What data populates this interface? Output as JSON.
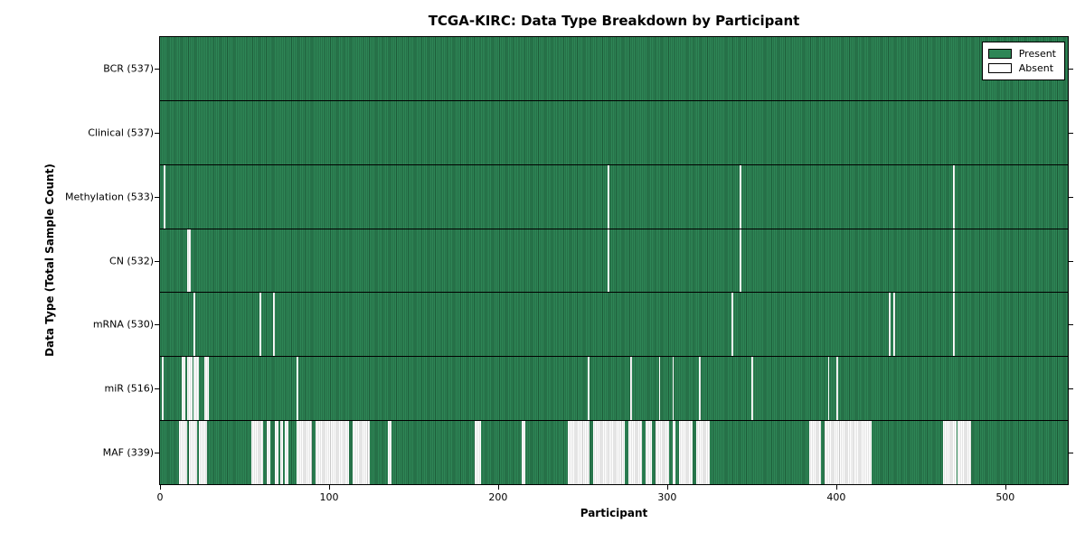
{
  "chart_data": {
    "type": "heatmap",
    "title": "TCGA-KIRC: Data Type Breakdown by Participant",
    "xlabel": "Participant",
    "ylabel": "Data Type (Total Sample Count)",
    "x_ticks": [
      0,
      100,
      200,
      300,
      400,
      500
    ],
    "x_range": [
      0,
      537
    ],
    "n_participants": 537,
    "grid": false,
    "legend_position": "upper right",
    "legend": [
      {
        "label": "Present",
        "color": "#2e8656"
      },
      {
        "label": "Absent",
        "color": "#ffffff"
      }
    ],
    "colors": {
      "present": "#2e8656",
      "present_edge": "#1d5c39",
      "absent": "#ffffff",
      "absent_edge": "#c9c9c9",
      "axis": "#000000",
      "background": "#ffffff"
    },
    "rows": [
      {
        "name": "BCR",
        "label": "BCR (537)",
        "total": 537,
        "absent_ranges": []
      },
      {
        "name": "Clinical",
        "label": "Clinical (537)",
        "total": 537,
        "absent_ranges": []
      },
      {
        "name": "Methylation",
        "label": "Methylation (533)",
        "total": 533,
        "absent_ranges": [
          [
            2,
            2
          ],
          [
            265,
            265
          ],
          [
            343,
            343
          ],
          [
            469,
            469
          ]
        ]
      },
      {
        "name": "CN",
        "label": "CN (532)",
        "total": 532,
        "absent_ranges": [
          [
            16,
            17
          ],
          [
            265,
            265
          ],
          [
            343,
            343
          ],
          [
            469,
            469
          ]
        ]
      },
      {
        "name": "mRNA",
        "label": "mRNA (530)",
        "total": 530,
        "absent_ranges": [
          [
            20,
            20
          ],
          [
            59,
            59
          ],
          [
            67,
            67
          ],
          [
            338,
            338
          ],
          [
            431,
            431
          ],
          [
            434,
            434
          ],
          [
            469,
            469
          ]
        ]
      },
      {
        "name": "miR",
        "label": "miR (516)",
        "total": 516,
        "absent_ranges": [
          [
            1,
            1
          ],
          [
            13,
            14
          ],
          [
            16,
            18
          ],
          [
            20,
            22
          ],
          [
            26,
            28
          ],
          [
            81,
            81
          ],
          [
            253,
            253
          ],
          [
            278,
            278
          ],
          [
            295,
            295
          ],
          [
            303,
            303
          ],
          [
            319,
            319
          ],
          [
            350,
            350
          ],
          [
            395,
            395
          ],
          [
            400,
            400
          ]
        ]
      },
      {
        "name": "MAF",
        "label": "MAF (339)",
        "total": 339,
        "absent_ranges": [
          [
            11,
            15
          ],
          [
            17,
            21
          ],
          [
            23,
            27
          ],
          [
            54,
            60
          ],
          [
            63,
            64
          ],
          [
            68,
            69
          ],
          [
            71,
            72
          ],
          [
            74,
            75
          ],
          [
            81,
            89
          ],
          [
            92,
            111
          ],
          [
            114,
            123
          ],
          [
            135,
            136
          ],
          [
            186,
            189
          ],
          [
            214,
            215
          ],
          [
            241,
            253
          ],
          [
            256,
            274
          ],
          [
            277,
            284
          ],
          [
            287,
            290
          ],
          [
            293,
            300
          ],
          [
            303,
            304
          ],
          [
            307,
            314
          ],
          [
            317,
            324
          ],
          [
            384,
            390
          ],
          [
            393,
            420
          ],
          [
            463,
            470
          ],
          [
            472,
            479
          ]
        ]
      }
    ]
  }
}
